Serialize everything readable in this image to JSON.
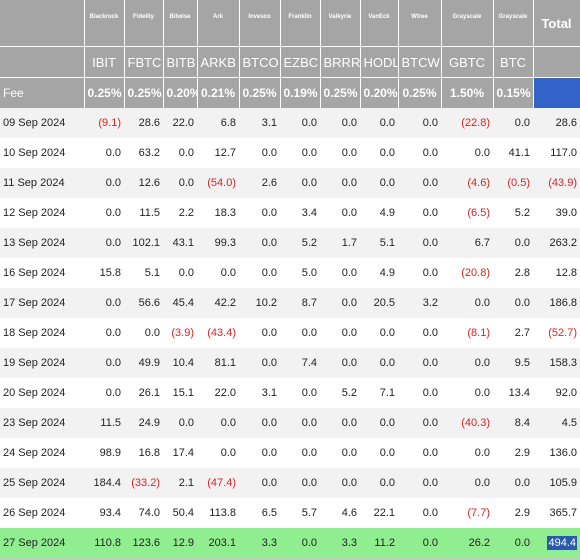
{
  "header": {
    "issuers": [
      "",
      "Blackrock",
      "Fidelity",
      "Bitwise",
      "Ark",
      "Invesco",
      "Franklin",
      "Valkyrie",
      "VanEck",
      "Wtree",
      "Grayscale",
      "Grayscale"
    ],
    "total_label": "Total",
    "tickers": [
      "",
      "IBIT",
      "FBTC",
      "BITB",
      "ARKB",
      "BTCO",
      "EZBC",
      "BRRR",
      "HODL",
      "BTCW",
      "GBTC",
      "BTC"
    ],
    "fee_label": "Fee",
    "fees": [
      "0.25%",
      "0.25%",
      "0.20%",
      "0.21%",
      "0.25%",
      "0.19%",
      "0.25%",
      "0.20%",
      "0.25%",
      "1.50%",
      "0.15%"
    ]
  },
  "rows": [
    {
      "date": "09 Sep 2024",
      "values": [
        "(9.1)",
        "28.6",
        "22.0",
        "6.8",
        "3.1",
        "0.0",
        "0.0",
        "0.0",
        "0.0",
        "(22.8)",
        "0.0"
      ],
      "total": "28.6"
    },
    {
      "date": "10 Sep 2024",
      "values": [
        "0.0",
        "63.2",
        "0.0",
        "12.7",
        "0.0",
        "0.0",
        "0.0",
        "0.0",
        "0.0",
        "0.0",
        "41.1"
      ],
      "total": "117.0"
    },
    {
      "date": "11 Sep 2024",
      "values": [
        "0.0",
        "12.6",
        "0.0",
        "(54.0)",
        "2.6",
        "0.0",
        "0.0",
        "0.0",
        "0.0",
        "(4.6)",
        "(0.5)"
      ],
      "total": "(43.9)"
    },
    {
      "date": "12 Sep 2024",
      "values": [
        "0.0",
        "11.5",
        "2.2",
        "18.3",
        "0.0",
        "3.4",
        "0.0",
        "4.9",
        "0.0",
        "(6.5)",
        "5.2"
      ],
      "total": "39.0"
    },
    {
      "date": "13 Sep 2024",
      "values": [
        "0.0",
        "102.1",
        "43.1",
        "99.3",
        "0.0",
        "5.2",
        "1.7",
        "5.1",
        "0.0",
        "6.7",
        "0.0"
      ],
      "total": "263.2"
    },
    {
      "date": "16 Sep 2024",
      "values": [
        "15.8",
        "5.1",
        "0.0",
        "0.0",
        "0.0",
        "5.0",
        "0.0",
        "4.9",
        "0.0",
        "(20.8)",
        "2.8"
      ],
      "total": "12.8"
    },
    {
      "date": "17 Sep 2024",
      "values": [
        "0.0",
        "56.6",
        "45.4",
        "42.2",
        "10.2",
        "8.7",
        "0.0",
        "20.5",
        "3.2",
        "0.0",
        "0.0"
      ],
      "total": "186.8"
    },
    {
      "date": "18 Sep 2024",
      "values": [
        "0.0",
        "0.0",
        "(3.9)",
        "(43.4)",
        "0.0",
        "0.0",
        "0.0",
        "0.0",
        "0.0",
        "(8.1)",
        "2.7"
      ],
      "total": "(52.7)"
    },
    {
      "date": "19 Sep 2024",
      "values": [
        "0.0",
        "49.9",
        "10.4",
        "81.1",
        "0.0",
        "7.4",
        "0.0",
        "0.0",
        "0.0",
        "0.0",
        "9.5"
      ],
      "total": "158.3"
    },
    {
      "date": "20 Sep 2024",
      "values": [
        "0.0",
        "26.1",
        "15.1",
        "22.0",
        "3.1",
        "0.0",
        "5.2",
        "7.1",
        "0.0",
        "0.0",
        "13.4"
      ],
      "total": "92.0"
    },
    {
      "date": "23 Sep 2024",
      "values": [
        "11.5",
        "24.9",
        "0.0",
        "0.0",
        "0.0",
        "0.0",
        "0.0",
        "0.0",
        "0.0",
        "(40.3)",
        "8.4"
      ],
      "total": "4.5"
    },
    {
      "date": "24 Sep 2024",
      "values": [
        "98.9",
        "16.8",
        "17.4",
        "0.0",
        "0.0",
        "0.0",
        "0.0",
        "0.0",
        "0.0",
        "0.0",
        "2.9"
      ],
      "total": "136.0"
    },
    {
      "date": "25 Sep 2024",
      "values": [
        "184.4",
        "(33.2)",
        "2.1",
        "(47.4)",
        "0.0",
        "0.0",
        "0.0",
        "0.0",
        "0.0",
        "0.0",
        "0.0"
      ],
      "total": "105.9"
    },
    {
      "date": "26 Sep 2024",
      "values": [
        "93.4",
        "74.0",
        "50.4",
        "113.8",
        "6.5",
        "5.7",
        "4.6",
        "22.1",
        "0.0",
        "(7.7)",
        "2.9"
      ],
      "total": "365.7"
    },
    {
      "date": "27 Sep 2024",
      "values": [
        "110.8",
        "123.6",
        "12.9",
        "203.1",
        "3.3",
        "0.0",
        "3.3",
        "11.2",
        "0.0",
        "26.2",
        "0.0"
      ],
      "total": "494.4"
    }
  ],
  "colors": {
    "header_bg": "#a5a5a5",
    "fee_total_bg": "#3264c8",
    "negative": "#e02020",
    "last_row_bg": "#90ee90",
    "selected_cell_bg": "#2a5aa8"
  }
}
